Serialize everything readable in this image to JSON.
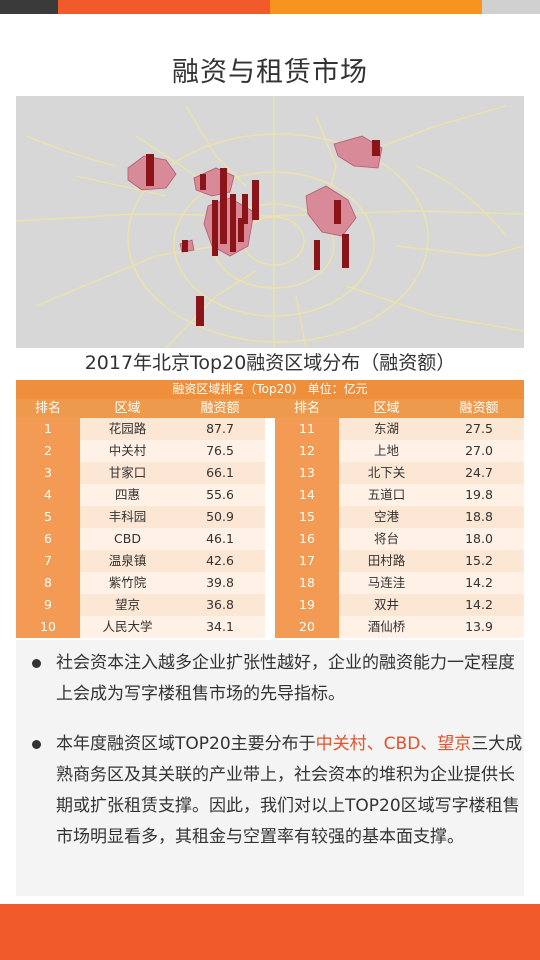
{
  "colors": {
    "orange": "#f7941d",
    "orange_red": "#f15a2a",
    "dark": "#3a3a3a",
    "gray": "#d0d0d0",
    "highlight": "#e3522a"
  },
  "title": "融资与租赁市场",
  "map": {
    "title": "2017年北京Top20融资区域分布（融资额）"
  },
  "table": {
    "caption": "融资区域排名（Top20）     单位：亿元",
    "headers": [
      "排名",
      "区域",
      "融资额",
      "排名",
      "区域",
      "融资额"
    ],
    "rows": [
      {
        "rank": "1",
        "area": "花园路",
        "amount": "87.7"
      },
      {
        "rank": "2",
        "area": "中关村",
        "amount": "76.5"
      },
      {
        "rank": "3",
        "area": "甘家口",
        "amount": "66.1"
      },
      {
        "rank": "4",
        "area": "四惠",
        "amount": "55.6"
      },
      {
        "rank": "5",
        "area": "丰科园",
        "amount": "50.9"
      },
      {
        "rank": "6",
        "area": "CBD",
        "amount": "46.1"
      },
      {
        "rank": "7",
        "area": "温泉镇",
        "amount": "42.6"
      },
      {
        "rank": "8",
        "area": "紫竹院",
        "amount": "39.8"
      },
      {
        "rank": "9",
        "area": "望京",
        "amount": "36.8"
      },
      {
        "rank": "10",
        "area": "人民大学",
        "amount": "34.1"
      },
      {
        "rank": "11",
        "area": "东湖",
        "amount": "27.5"
      },
      {
        "rank": "12",
        "area": "上地",
        "amount": "27.0"
      },
      {
        "rank": "13",
        "area": "北下关",
        "amount": "24.7"
      },
      {
        "rank": "14",
        "area": "五道口",
        "amount": "19.8"
      },
      {
        "rank": "15",
        "area": "空港",
        "amount": "18.8"
      },
      {
        "rank": "16",
        "area": "将台",
        "amount": "18.0"
      },
      {
        "rank": "17",
        "area": "田村路",
        "amount": "15.2"
      },
      {
        "rank": "18",
        "area": "马连洼",
        "amount": "14.2"
      },
      {
        "rank": "19",
        "area": "双井",
        "amount": "14.2"
      },
      {
        "rank": "20",
        "area": "酒仙桥",
        "amount": "13.9"
      }
    ]
  },
  "bullets": {
    "b1": "社会资本注入越多企业扩张性越好，企业的融资能力一定程度上会成为写字楼租售市场的先导指标。",
    "b2_pre": "本年度融资区域TOP20主要分布于",
    "b2_hl": "中关村、CBD、望京",
    "b2_post": "三大成熟商务区及其关联的产业带上，社会资本的堆积为企业提供长期或扩张租赁支撑。因此，我们对以上TOP20区域写字楼租售市场明显看多，其租金与空置率有较强的基本面支撑。"
  }
}
